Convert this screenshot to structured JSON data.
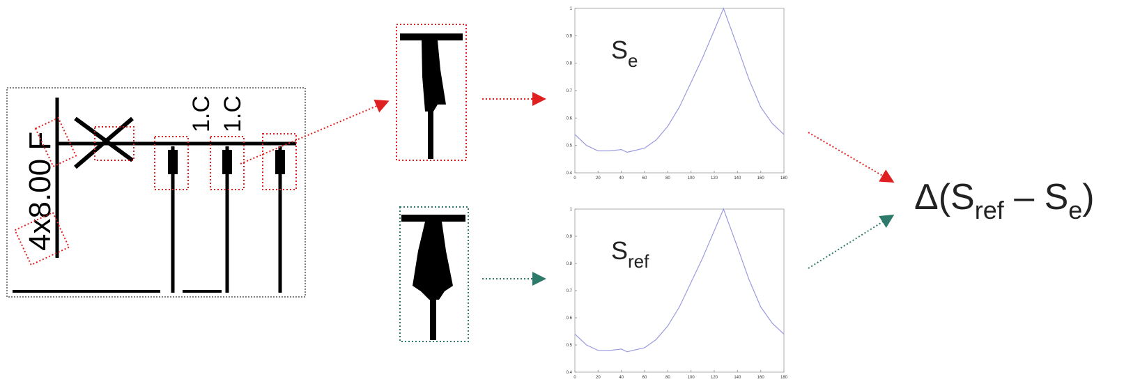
{
  "plots": [
    {
      "symbol": "S",
      "subscript": "e",
      "xlim": [
        0,
        180
      ],
      "ylim": [
        0.4,
        1
      ],
      "xticks": [
        0,
        20,
        40,
        60,
        80,
        100,
        120,
        140,
        160,
        180
      ],
      "yticks": [
        0.4,
        0.5,
        0.6,
        0.7,
        0.8,
        0.9,
        1
      ],
      "x": [
        0,
        10,
        20,
        30,
        40,
        45,
        50,
        60,
        70,
        80,
        90,
        100,
        110,
        120,
        128,
        140,
        150,
        160,
        170,
        180
      ],
      "y": [
        0.54,
        0.5,
        0.48,
        0.48,
        0.485,
        0.475,
        0.48,
        0.49,
        0.52,
        0.57,
        0.64,
        0.73,
        0.82,
        0.92,
        1,
        0.86,
        0.74,
        0.64,
        0.58,
        0.54
      ]
    },
    {
      "symbol": "S",
      "subscript": "ref",
      "xlim": [
        0,
        180
      ],
      "ylim": [
        0.4,
        1
      ],
      "xticks": [
        0,
        20,
        40,
        60,
        80,
        100,
        120,
        140,
        160,
        180
      ],
      "yticks": [
        0.4,
        0.5,
        0.6,
        0.7,
        0.8,
        0.9,
        1
      ],
      "x": [
        0,
        10,
        20,
        30,
        40,
        45,
        50,
        60,
        70,
        80,
        90,
        100,
        110,
        120,
        128,
        140,
        150,
        160,
        170,
        180
      ],
      "y": [
        0.54,
        0.5,
        0.48,
        0.48,
        0.485,
        0.475,
        0.48,
        0.49,
        0.52,
        0.57,
        0.64,
        0.73,
        0.82,
        0.92,
        1,
        0.86,
        0.74,
        0.64,
        0.58,
        0.54
      ]
    }
  ],
  "result": {
    "open": "Δ(S",
    "sub1": "ref",
    "minus": " – S",
    "sub2": "e",
    "close": ")"
  }
}
